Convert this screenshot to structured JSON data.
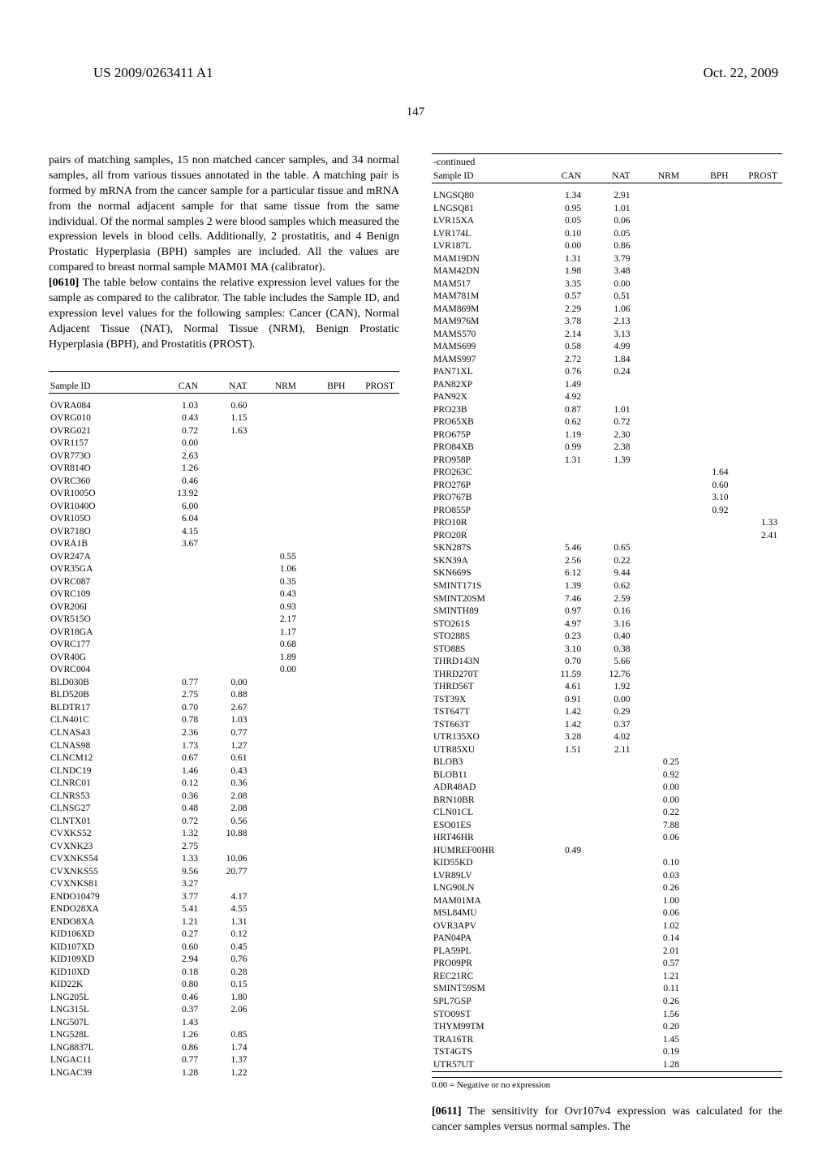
{
  "patent_id": "US 2009/0263411 A1",
  "pub_date": "Oct. 22, 2009",
  "page_number": "147",
  "para1_text": "pairs of matching samples, 15 non matched cancer samples, and 34 normal samples, all from various tissues annotated in the table. A matching pair is formed by mRNA from the cancer sample for a particular tissue and mRNA from the normal adjacent sample for that same tissue from the same individual. Of the normal samples 2 were blood samples which measured the expression levels in blood cells. Additionally, 2 prostatitis, and 4 Benign Prostatic Hyperplasia (BPH) samples are included. All the values are compared to breast normal sample MAM01 MA (calibrator).",
  "para2_num": "[0610]",
  "para2_text": "  The table below contains the relative expression level values for the sample as compared to the calibrator. The table includes the Sample ID, and expression level values for the following samples: Cancer (CAN), Normal Adjacent Tissue (NAT), Normal Tissue (NRM), Benign Prostatic Hyperplasia (BPH), and Prostatitis (PROST).",
  "para3_num": "[0611]",
  "para3_text": "  The sensitivity for Ovr107v4 expression was calculated for the cancer samples versus normal samples. The",
  "continued_label": "-continued",
  "footnote_text": "0.00 = Negative or no expression",
  "columns": [
    "Sample ID",
    "CAN",
    "NAT",
    "NRM",
    "BPH",
    "PROST"
  ],
  "left_rows": [
    [
      "OVRA084",
      "1.03",
      "0.60",
      "",
      "",
      ""
    ],
    [
      "OVRG010",
      "0.43",
      "1.15",
      "",
      "",
      ""
    ],
    [
      "OVRG021",
      "0.72",
      "1.63",
      "",
      "",
      ""
    ],
    [
      "OVR1157",
      "0.00",
      "",
      "",
      "",
      ""
    ],
    [
      "OVR773O",
      "2.63",
      "",
      "",
      "",
      ""
    ],
    [
      "OVR814O",
      "1.26",
      "",
      "",
      "",
      ""
    ],
    [
      "OVRC360",
      "0.46",
      "",
      "",
      "",
      ""
    ],
    [
      "OVR1005O",
      "13.92",
      "",
      "",
      "",
      ""
    ],
    [
      "OVR1040O",
      "6.00",
      "",
      "",
      "",
      ""
    ],
    [
      "OVR105O",
      "6.04",
      "",
      "",
      "",
      ""
    ],
    [
      "OVR718O",
      "4.15",
      "",
      "",
      "",
      ""
    ],
    [
      "OVRA1B",
      "3.67",
      "",
      "",
      "",
      ""
    ],
    [
      "OVR247A",
      "",
      "",
      "0.55",
      "",
      ""
    ],
    [
      "OVR35GA",
      "",
      "",
      "1.06",
      "",
      ""
    ],
    [
      "OVRC087",
      "",
      "",
      "0.35",
      "",
      ""
    ],
    [
      "OVRC109",
      "",
      "",
      "0.43",
      "",
      ""
    ],
    [
      "OVR206I",
      "",
      "",
      "0.93",
      "",
      ""
    ],
    [
      "OVR515O",
      "",
      "",
      "2.17",
      "",
      ""
    ],
    [
      "OVR18GA",
      "",
      "",
      "1.17",
      "",
      ""
    ],
    [
      "OVRC177",
      "",
      "",
      "0.68",
      "",
      ""
    ],
    [
      "OVR40G",
      "",
      "",
      "1.89",
      "",
      ""
    ],
    [
      "OVRC004",
      "",
      "",
      "0.00",
      "",
      ""
    ],
    [
      "BLD030B",
      "0.77",
      "0.00",
      "",
      "",
      ""
    ],
    [
      "BLD520B",
      "2.75",
      "0.88",
      "",
      "",
      ""
    ],
    [
      "BLDTR17",
      "0.70",
      "2.67",
      "",
      "",
      ""
    ],
    [
      "CLN401C",
      "0.78",
      "1.03",
      "",
      "",
      ""
    ],
    [
      "CLNAS43",
      "2.36",
      "0.77",
      "",
      "",
      ""
    ],
    [
      "CLNAS98",
      "1.73",
      "1.27",
      "",
      "",
      ""
    ],
    [
      "CLNCM12",
      "0.67",
      "0.61",
      "",
      "",
      ""
    ],
    [
      "CLNDC19",
      "1.46",
      "0.43",
      "",
      "",
      ""
    ],
    [
      "CLNRC01",
      "0.12",
      "0.36",
      "",
      "",
      ""
    ],
    [
      "CLNRS53",
      "0.36",
      "2.08",
      "",
      "",
      ""
    ],
    [
      "CLNSG27",
      "0.48",
      "2.08",
      "",
      "",
      ""
    ],
    [
      "CLNTX01",
      "0.72",
      "0.56",
      "",
      "",
      ""
    ],
    [
      "CVXKS52",
      "1.32",
      "10.88",
      "",
      "",
      ""
    ],
    [
      "CVXNK23",
      "2.75",
      "",
      "",
      "",
      ""
    ],
    [
      "CVXNKS54",
      "1.33",
      "10.06",
      "",
      "",
      ""
    ],
    [
      "CVXNKS55",
      "9.56",
      "20.77",
      "",
      "",
      ""
    ],
    [
      "CVXNKS81",
      "3.27",
      "",
      "",
      "",
      ""
    ],
    [
      "ENDO10479",
      "3.77",
      "4.17",
      "",
      "",
      ""
    ],
    [
      "ENDO28XA",
      "5.41",
      "4.55",
      "",
      "",
      ""
    ],
    [
      "ENDO8XA",
      "1.21",
      "1.31",
      "",
      "",
      ""
    ],
    [
      "KID106XD",
      "0.27",
      "0.12",
      "",
      "",
      ""
    ],
    [
      "KID107XD",
      "0.60",
      "0.45",
      "",
      "",
      ""
    ],
    [
      "KID109XD",
      "2.94",
      "0.76",
      "",
      "",
      ""
    ],
    [
      "KID10XD",
      "0.18",
      "0.28",
      "",
      "",
      ""
    ],
    [
      "KID22K",
      "0.80",
      "0.15",
      "",
      "",
      ""
    ],
    [
      "LNG205L",
      "0.46",
      "1.80",
      "",
      "",
      ""
    ],
    [
      "LNG315L",
      "0.37",
      "2.06",
      "",
      "",
      ""
    ],
    [
      "LNG507L",
      "1.43",
      "",
      "",
      "",
      ""
    ],
    [
      "LNG528L",
      "1.26",
      "0.85",
      "",
      "",
      ""
    ],
    [
      "LNG8837L",
      "0.86",
      "1.74",
      "",
      "",
      ""
    ],
    [
      "LNGAC11",
      "0.77",
      "1.37",
      "",
      "",
      ""
    ],
    [
      "LNGAC39",
      "1.28",
      "1.22",
      "",
      "",
      ""
    ]
  ],
  "right_rows": [
    [
      "LNGSQ80",
      "1.34",
      "2.91",
      "",
      "",
      ""
    ],
    [
      "LNGSQ81",
      "0.95",
      "1.01",
      "",
      "",
      ""
    ],
    [
      "LVR15XA",
      "0.05",
      "0.06",
      "",
      "",
      ""
    ],
    [
      "LVR174L",
      "0.10",
      "0.05",
      "",
      "",
      ""
    ],
    [
      "LVR187L",
      "0.00",
      "0.86",
      "",
      "",
      ""
    ],
    [
      "MAM19DN",
      "1.31",
      "3.79",
      "",
      "",
      ""
    ],
    [
      "MAM42DN",
      "1.98",
      "3.48",
      "",
      "",
      ""
    ],
    [
      "MAM517",
      "3.35",
      "0.00",
      "",
      "",
      ""
    ],
    [
      "MAM781M",
      "0.57",
      "0.51",
      "",
      "",
      ""
    ],
    [
      "MAM869M",
      "2.29",
      "1.06",
      "",
      "",
      ""
    ],
    [
      "MAM976M",
      "3.78",
      "2.13",
      "",
      "",
      ""
    ],
    [
      "MAMS570",
      "2.14",
      "3.13",
      "",
      "",
      ""
    ],
    [
      "MAMS699",
      "0.58",
      "4.99",
      "",
      "",
      ""
    ],
    [
      "MAMS997",
      "2.72",
      "1.84",
      "",
      "",
      ""
    ],
    [
      "PAN71XL",
      "0.76",
      "0.24",
      "",
      "",
      ""
    ],
    [
      "PAN82XP",
      "1.49",
      "",
      "",
      "",
      ""
    ],
    [
      "PAN92X",
      "4.92",
      "",
      "",
      "",
      ""
    ],
    [
      "PRO23B",
      "0.87",
      "1.01",
      "",
      "",
      ""
    ],
    [
      "PRO65XB",
      "0.62",
      "0.72",
      "",
      "",
      ""
    ],
    [
      "PRO675P",
      "1.19",
      "2.30",
      "",
      "",
      ""
    ],
    [
      "PRO84XB",
      "0.99",
      "2.38",
      "",
      "",
      ""
    ],
    [
      "PRO958P",
      "1.31",
      "1.39",
      "",
      "",
      ""
    ],
    [
      "PRO263C",
      "",
      "",
      "",
      "1.64",
      ""
    ],
    [
      "PRO276P",
      "",
      "",
      "",
      "0.60",
      ""
    ],
    [
      "PRO767B",
      "",
      "",
      "",
      "3.10",
      ""
    ],
    [
      "PRO855P",
      "",
      "",
      "",
      "0.92",
      ""
    ],
    [
      "PRO10R",
      "",
      "",
      "",
      "",
      "1.33"
    ],
    [
      "PRO20R",
      "",
      "",
      "",
      "",
      "2.41"
    ],
    [
      "SKN287S",
      "5.46",
      "0.65",
      "",
      "",
      ""
    ],
    [
      "SKN39A",
      "2.56",
      "0.22",
      "",
      "",
      ""
    ],
    [
      "SKN669S",
      "6.12",
      "9.44",
      "",
      "",
      ""
    ],
    [
      "SMINT171S",
      "1.39",
      "0.62",
      "",
      "",
      ""
    ],
    [
      "SMINT20SM",
      "7.46",
      "2.59",
      "",
      "",
      ""
    ],
    [
      "SMINTH89",
      "0.97",
      "0.16",
      "",
      "",
      ""
    ],
    [
      "STO261S",
      "4.97",
      "3.16",
      "",
      "",
      ""
    ],
    [
      "STO288S",
      "0.23",
      "0.40",
      "",
      "",
      ""
    ],
    [
      "STO88S",
      "3.10",
      "0.38",
      "",
      "",
      ""
    ],
    [
      "THRD143N",
      "0.70",
      "5.66",
      "",
      "",
      ""
    ],
    [
      "THRD270T",
      "11.59",
      "12.76",
      "",
      "",
      ""
    ],
    [
      "THRD56T",
      "4.61",
      "1.92",
      "",
      "",
      ""
    ],
    [
      "TST39X",
      "0.91",
      "0.00",
      "",
      "",
      ""
    ],
    [
      "TST647T",
      "1.42",
      "0.29",
      "",
      "",
      ""
    ],
    [
      "TST663T",
      "1.42",
      "0.37",
      "",
      "",
      ""
    ],
    [
      "UTR135XO",
      "3.28",
      "4.02",
      "",
      "",
      ""
    ],
    [
      "UTR85XU",
      "1.51",
      "2.11",
      "",
      "",
      ""
    ],
    [
      "BLOB3",
      "",
      "",
      "0.25",
      "",
      ""
    ],
    [
      "BLOB11",
      "",
      "",
      "0.92",
      "",
      ""
    ],
    [
      "ADR48AD",
      "",
      "",
      "0.00",
      "",
      ""
    ],
    [
      "BRN10BR",
      "",
      "",
      "0.00",
      "",
      ""
    ],
    [
      "CLN01CL",
      "",
      "",
      "0.22",
      "",
      ""
    ],
    [
      "ESO01ES",
      "",
      "",
      "7.88",
      "",
      ""
    ],
    [
      "HRT46HR",
      "",
      "",
      "0.06",
      "",
      ""
    ],
    [
      "HUMREF00HR",
      "0.49",
      "",
      "",
      "",
      ""
    ],
    [
      "KID55KD",
      "",
      "",
      "0.10",
      "",
      ""
    ],
    [
      "LVR89LV",
      "",
      "",
      "0.03",
      "",
      ""
    ],
    [
      "LNG90LN",
      "",
      "",
      "0.26",
      "",
      ""
    ],
    [
      "MAM01MA",
      "",
      "",
      "1.00",
      "",
      ""
    ],
    [
      "MSL84MU",
      "",
      "",
      "0.06",
      "",
      ""
    ],
    [
      "OVR3APV",
      "",
      "",
      "1.02",
      "",
      ""
    ],
    [
      "PAN04PA",
      "",
      "",
      "0.14",
      "",
      ""
    ],
    [
      "PLA59PL",
      "",
      "",
      "2.01",
      "",
      ""
    ],
    [
      "PRO09PR",
      "",
      "",
      "0.57",
      "",
      ""
    ],
    [
      "REC21RC",
      "",
      "",
      "1.21",
      "",
      ""
    ],
    [
      "SMINT59SM",
      "",
      "",
      "0.11",
      "",
      ""
    ],
    [
      "SPL7GSP",
      "",
      "",
      "0.26",
      "",
      ""
    ],
    [
      "STO09ST",
      "",
      "",
      "1.56",
      "",
      ""
    ],
    [
      "THYM99TM",
      "",
      "",
      "0.20",
      "",
      ""
    ],
    [
      "TRA16TR",
      "",
      "",
      "1.45",
      "",
      ""
    ],
    [
      "TST4GTS",
      "",
      "",
      "0.19",
      "",
      ""
    ],
    [
      "UTR57UT",
      "",
      "",
      "1.28",
      "",
      ""
    ]
  ]
}
